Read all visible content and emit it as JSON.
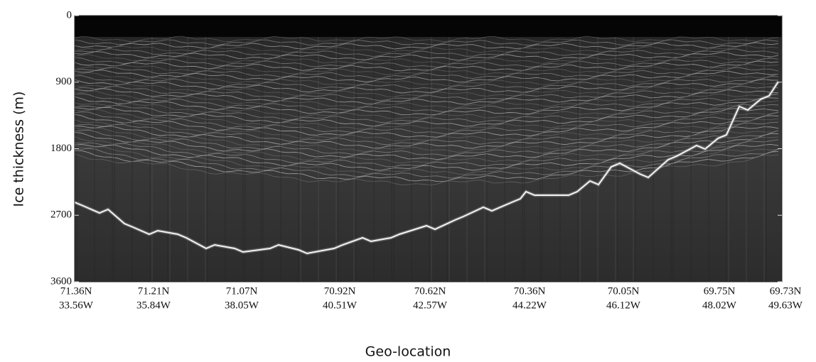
{
  "chart_data": {
    "type": "echogram",
    "ylabel": "Ice thickness (m)",
    "xlabel": "Geo-location",
    "ylim": [
      0,
      3600
    ],
    "yticks": [
      0,
      900,
      1800,
      2700,
      3600
    ],
    "y_inverted": true,
    "categories": [
      [
        "71.36N",
        "33.56W"
      ],
      [
        "71.21N",
        "35.84W"
      ],
      [
        "71.07N",
        "38.05W"
      ],
      [
        "70.92N",
        "40.51W"
      ],
      [
        "70.62N",
        "42.57W"
      ],
      [
        "70.36N",
        "44.22W"
      ],
      [
        "70.05N",
        "46.12W"
      ],
      [
        "69.75N",
        "48.02W"
      ],
      [
        "69.73N",
        "49.63W"
      ]
    ]
  }
}
